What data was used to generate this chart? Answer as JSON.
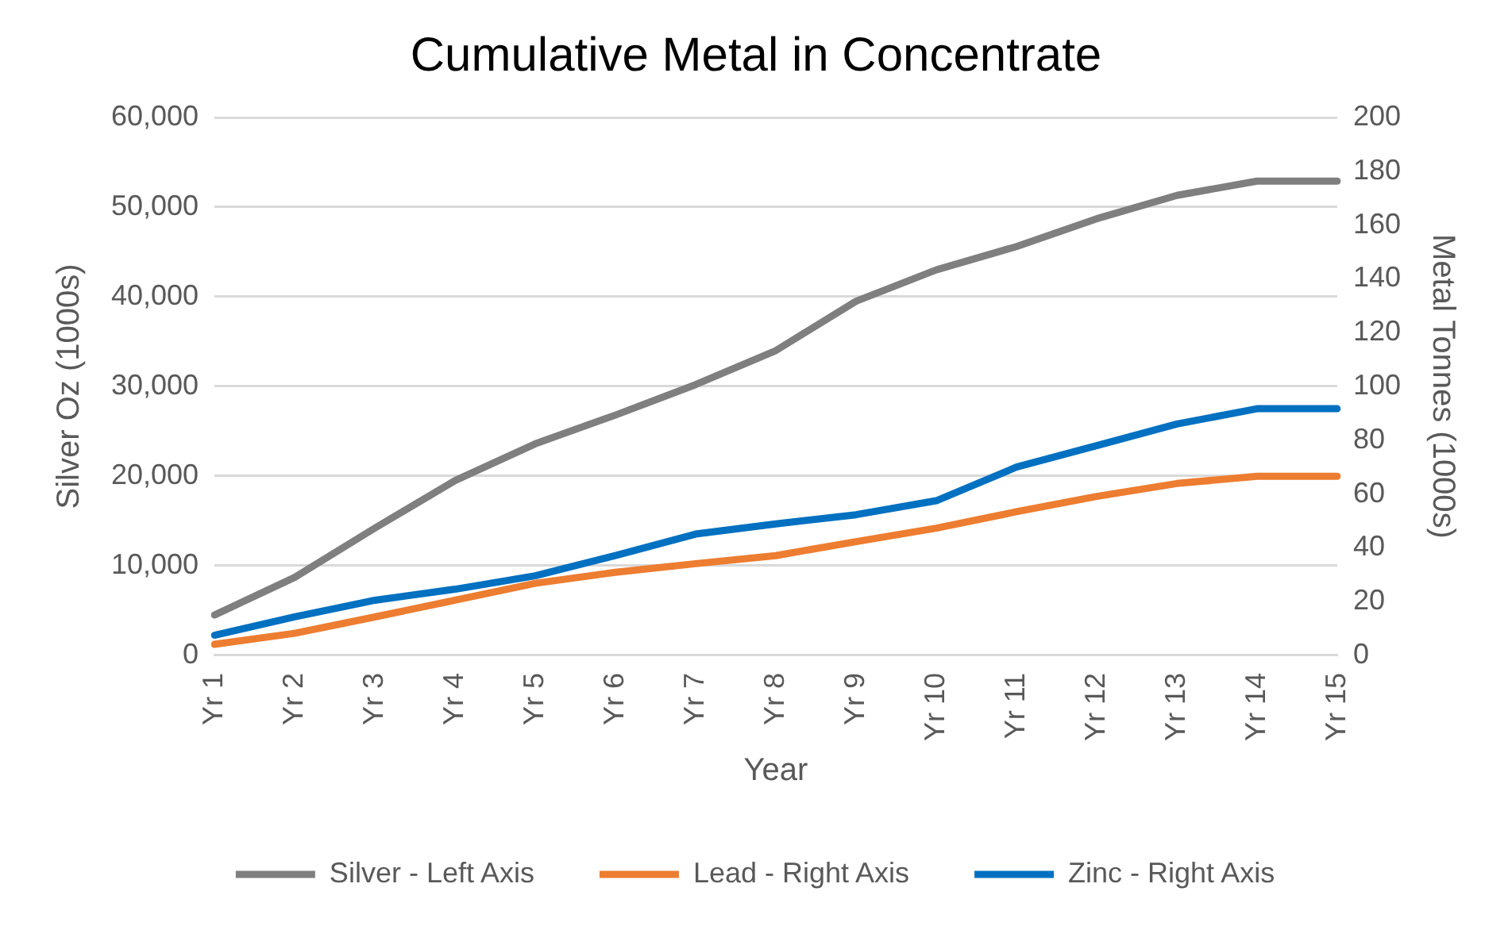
{
  "chart_data": {
    "type": "line",
    "title": "Cumulative Metal in Concentrate",
    "xlabel": "Year",
    "ylabel": "Silver Oz (1000s)",
    "y2label": "Metal Tonnes (1000s)",
    "categories": [
      "Yr 1",
      "Yr 2",
      "Yr 3",
      "Yr 4",
      "Yr 5",
      "Yr 6",
      "Yr 7",
      "Yr 8",
      "Yr 9",
      "Yr 10",
      "Yr 11",
      "Yr 12",
      "Yr 13",
      "Yr 14",
      "Yr 15"
    ],
    "series": [
      {
        "name": "Silver - Left Axis",
        "color": "#7f7f7f",
        "axis": "y",
        "values": [
          4500,
          8700,
          14200,
          19500,
          23600,
          26800,
          30200,
          34000,
          39500,
          43000,
          45600,
          48700,
          51300,
          52900,
          52900
        ]
      },
      {
        "name": "Lead - Right Axis",
        "color": "#ed7d31",
        "axis": "y2",
        "values": [
          4.1,
          8.2,
          14.3,
          20.5,
          26.8,
          30.9,
          34.1,
          37.1,
          42.3,
          47.3,
          53.4,
          59.1,
          63.9,
          66.6,
          66.6
        ]
      },
      {
        "name": "Zinc - Right Axis",
        "color": "#0070c0",
        "axis": "y2",
        "values": [
          7.5,
          14.3,
          20.5,
          24.6,
          29.6,
          37.1,
          45.1,
          48.9,
          52.3,
          57.5,
          70.0,
          78.0,
          86.0,
          91.7,
          91.7
        ]
      }
    ],
    "ylim": [
      0,
      60000
    ],
    "yticks": [
      {
        "value": 0,
        "label": "0"
      },
      {
        "value": 10000,
        "label": "10,000"
      },
      {
        "value": 20000,
        "label": "20,000"
      },
      {
        "value": 30000,
        "label": "30,000"
      },
      {
        "value": 40000,
        "label": "40,000"
      },
      {
        "value": 50000,
        "label": "50,000"
      },
      {
        "value": 60000,
        "label": "60,000"
      }
    ],
    "y2lim": [
      0,
      200
    ],
    "y2ticks": [
      0,
      20,
      40,
      60,
      80,
      100,
      120,
      140,
      160,
      180,
      200
    ],
    "grid": "y",
    "legend": "bottom",
    "marker": "none",
    "line_style": "solid"
  }
}
